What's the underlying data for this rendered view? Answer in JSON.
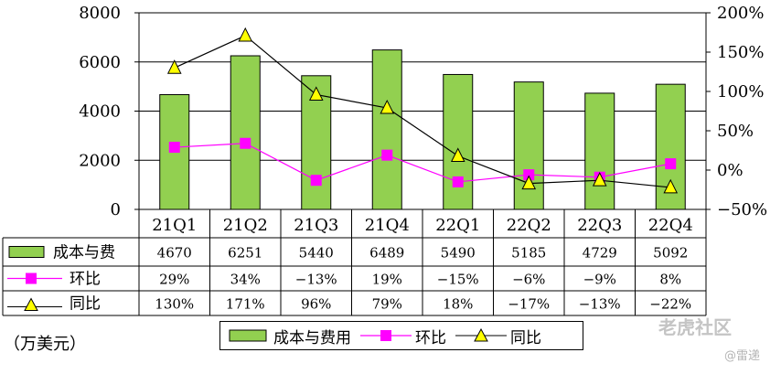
{
  "chart_data": {
    "type": "bar",
    "categories": [
      "21Q1",
      "21Q2",
      "21Q3",
      "21Q4",
      "22Q1",
      "22Q2",
      "22Q3",
      "22Q4"
    ],
    "series": [
      {
        "name": "成本与费用",
        "type": "bar",
        "axis": "left",
        "values": [
          4670,
          6251,
          5440,
          6489,
          5490,
          5185,
          4729,
          5092
        ],
        "color": "#92d050",
        "labels": [
          "4670",
          "6251",
          "5440",
          "6489",
          "5490",
          "5185",
          "4729",
          "5092"
        ]
      },
      {
        "name": "环比",
        "type": "line",
        "axis": "right",
        "values": [
          29,
          34,
          -13,
          19,
          -15,
          -6,
          -9,
          8
        ],
        "color": "#ff00ff",
        "marker": "square",
        "labels": [
          "29%",
          "34%",
          "−13%",
          "19%",
          "−15%",
          "−6%",
          "−9%",
          "8%"
        ]
      },
      {
        "name": "同比",
        "type": "line",
        "axis": "right",
        "values": [
          130,
          171,
          96,
          79,
          18,
          -17,
          -13,
          -22
        ],
        "color": "#000000",
        "marker_fill": "#ffff00",
        "marker": "triangle",
        "labels": [
          "130%",
          "171%",
          "96%",
          "79%",
          "18%",
          "−17%",
          "−13%",
          "−22%"
        ]
      }
    ],
    "table_row_labels": [
      "成本与费",
      "环比",
      "同比"
    ],
    "ylim": [
      0,
      8000
    ],
    "yticks": [
      "0",
      "2000",
      "4000",
      "6000",
      "8000"
    ],
    "y2lim": [
      -50,
      200
    ],
    "y2ticks": [
      "−50%",
      "0%",
      "50%",
      "100%",
      "150%",
      "200%"
    ],
    "unit_label": "（万美元）",
    "legend": {
      "position": "bottom",
      "items": [
        "成本与费用",
        "环比",
        "同比"
      ]
    },
    "grid": true
  },
  "watermark": {
    "text": "老虎社区",
    "sub": "@雷递"
  }
}
